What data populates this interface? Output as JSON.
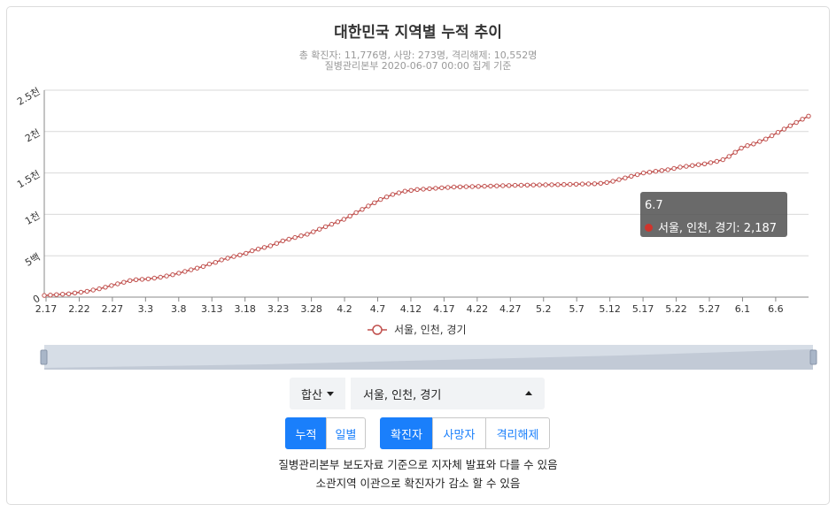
{
  "header": {
    "title": "대한민국 지역별 누적 추이",
    "subtitle_line1": "총 확진자: 11,776명, 사망: 273명, 격리해제: 10,552명",
    "subtitle_line2": "질병관리본부 2020-06-07 00:00 집계 기준"
  },
  "chart_data": {
    "type": "line",
    "x_tick_labels": [
      "2.17",
      "2.22",
      "2.27",
      "3.3",
      "3.8",
      "3.13",
      "3.18",
      "3.23",
      "3.28",
      "4.2",
      "4.7",
      "4.12",
      "4.17",
      "4.22",
      "4.27",
      "5.2",
      "5.7",
      "5.12",
      "5.17",
      "5.22",
      "5.27",
      "6.1",
      "6.6"
    ],
    "y_tick_labels": [
      "0",
      "5백",
      "1천",
      "1.5천",
      "2천",
      "2.5천"
    ],
    "ylim": [
      0,
      2500
    ],
    "grid": true,
    "legend_position": "bottom",
    "series": [
      {
        "name": "서울, 인천, 경기",
        "color": "#c0504d",
        "values": [
          20,
          25,
          30,
          35,
          40,
          50,
          60,
          70,
          85,
          100,
          120,
          140,
          160,
          180,
          200,
          210,
          215,
          220,
          230,
          240,
          255,
          270,
          290,
          310,
          330,
          350,
          370,
          400,
          420,
          450,
          470,
          490,
          510,
          530,
          560,
          580,
          600,
          620,
          650,
          680,
          700,
          720,
          740,
          760,
          790,
          820,
          850,
          880,
          910,
          940,
          980,
          1020,
          1060,
          1100,
          1140,
          1180,
          1210,
          1240,
          1260,
          1280,
          1290,
          1300,
          1305,
          1310,
          1315,
          1320,
          1325,
          1330,
          1332,
          1334,
          1336,
          1338,
          1340,
          1342,
          1344,
          1346,
          1348,
          1350,
          1352,
          1354,
          1355,
          1356,
          1357,
          1358,
          1359,
          1360,
          1362,
          1364,
          1366,
          1368,
          1370,
          1375,
          1385,
          1400,
          1420,
          1440,
          1460,
          1480,
          1500,
          1510,
          1520,
          1530,
          1540,
          1555,
          1570,
          1580,
          1590,
          1600,
          1610,
          1625,
          1640,
          1660,
          1700,
          1750,
          1800,
          1830,
          1850,
          1880,
          1910,
          1950,
          1990,
          2030,
          2070,
          2110,
          2150,
          2187
        ]
      }
    ],
    "tooltip": {
      "date": "6.7",
      "series": "서울, 인천, 경기",
      "value": "2,187"
    }
  },
  "tooltip": {
    "title": "6.7",
    "body": "서울, 인천, 경기: 2,187"
  },
  "legend": {
    "label": "서울, 인천, 경기"
  },
  "controls": {
    "region_select": "합산",
    "city_select": "서울, 인천, 경기",
    "mode_buttons": [
      {
        "label": "누적",
        "active": true
      },
      {
        "label": "일별",
        "active": false
      }
    ],
    "metric_buttons": [
      {
        "label": "확진자",
        "active": true
      },
      {
        "label": "사망자",
        "active": false
      },
      {
        "label": "격리해제",
        "active": false
      }
    ]
  },
  "notes": {
    "line1": "질병관리본부 보도자료 기준으로 지자체 발표와 다를 수 있음",
    "line2": "소관지역 이관으로 확진자가 감소 할 수 있음"
  }
}
